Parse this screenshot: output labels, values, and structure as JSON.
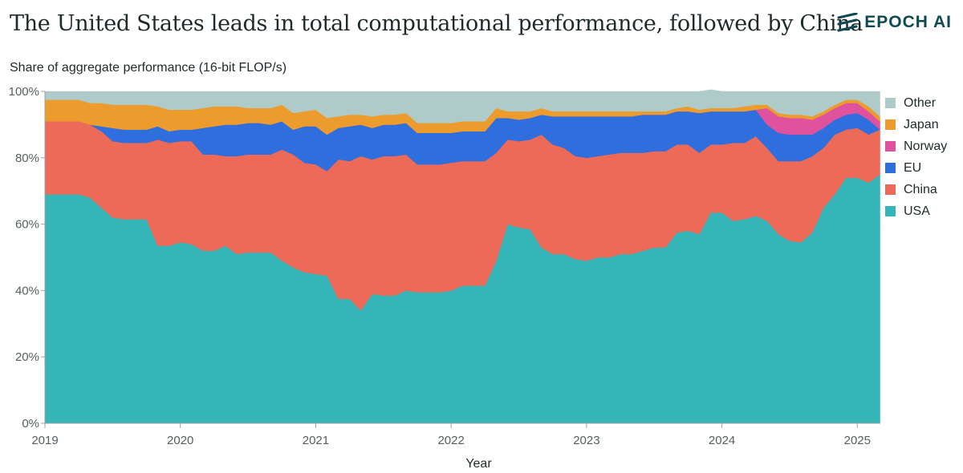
{
  "title": "The United States leads in total computational performance, followed by China",
  "brand": "EPOCH AI",
  "colors": {
    "USA": "#35b5b8",
    "China": "#ec6a57",
    "EU": "#2f6fdd",
    "Norway": "#e0519e",
    "Japan": "#ec9c2c",
    "Other": "#aecbca",
    "logo": "#0f4a52"
  },
  "chart_data": {
    "type": "area",
    "stacked": true,
    "title": "The United States leads in total computational performance, followed by China",
    "ylabel": "Share of aggregate performance (16-bit FLOP/s)",
    "xlabel": "Year",
    "xlim": [
      2019,
      2025.17
    ],
    "ylim": [
      0,
      100
    ],
    "yticks": [
      0,
      20,
      40,
      60,
      80,
      100
    ],
    "ytick_labels": [
      "0%",
      "20%",
      "40%",
      "60%",
      "80%",
      "100%"
    ],
    "xticks": [
      2019,
      2020,
      2021,
      2022,
      2023,
      2024,
      2025
    ],
    "xtick_labels": [
      "2019",
      "2020",
      "2021",
      "2022",
      "2023",
      "2024",
      "2025"
    ],
    "legend": [
      "Other",
      "Japan",
      "Norway",
      "EU",
      "China",
      "USA"
    ],
    "x": [
      2019.0,
      2019.083,
      2019.167,
      2019.25,
      2019.333,
      2019.417,
      2019.5,
      2019.583,
      2019.667,
      2019.75,
      2019.833,
      2019.917,
      2020.0,
      2020.083,
      2020.167,
      2020.25,
      2020.333,
      2020.417,
      2020.5,
      2020.583,
      2020.667,
      2020.75,
      2020.833,
      2020.917,
      2021.0,
      2021.083,
      2021.167,
      2021.25,
      2021.333,
      2021.417,
      2021.5,
      2021.583,
      2021.667,
      2021.75,
      2021.833,
      2021.917,
      2022.0,
      2022.083,
      2022.167,
      2022.25,
      2022.333,
      2022.417,
      2022.5,
      2022.583,
      2022.667,
      2022.75,
      2022.833,
      2022.917,
      2023.0,
      2023.083,
      2023.167,
      2023.25,
      2023.333,
      2023.417,
      2023.5,
      2023.583,
      2023.667,
      2023.75,
      2023.833,
      2023.917,
      2024.0,
      2024.083,
      2024.167,
      2024.25,
      2024.333,
      2024.417,
      2024.5,
      2024.583,
      2024.667,
      2024.75,
      2024.833,
      2024.917,
      2025.0,
      2025.083,
      2025.167
    ],
    "series": [
      {
        "name": "USA",
        "values": [
          69,
          69,
          69,
          69,
          68,
          65,
          62,
          61.5,
          61.5,
          61.5,
          53.5,
          53.5,
          54.5,
          54,
          52,
          52,
          53.5,
          51,
          51.5,
          51.5,
          51.5,
          49,
          47,
          45.5,
          45,
          44.5,
          37.5,
          37.5,
          34,
          39,
          38.5,
          38.5,
          40,
          39.5,
          39.5,
          39.5,
          40,
          41.5,
          41.5,
          41.5,
          49,
          60,
          59,
          58.5,
          53,
          51,
          51,
          49.5,
          49,
          50,
          50,
          51,
          51,
          52,
          53,
          53,
          57.5,
          58,
          57,
          63.5,
          63.5,
          61,
          61.5,
          62.5,
          61,
          57,
          55,
          54.5,
          57.5,
          65,
          69,
          74,
          74,
          72.5,
          75
        ]
      },
      {
        "name": "China",
        "values": [
          22,
          22,
          22,
          22,
          22,
          23,
          23,
          23,
          23,
          23,
          32,
          31,
          30.5,
          31,
          29,
          29,
          27,
          29.5,
          29.5,
          29.5,
          29.5,
          33.5,
          34,
          33,
          33,
          31.5,
          42,
          41.5,
          46.5,
          40.5,
          42,
          42,
          41,
          38.5,
          38.5,
          38.5,
          38.5,
          37.5,
          37.5,
          37.5,
          32.5,
          25.5,
          26,
          27,
          34,
          33,
          32,
          31,
          31,
          30.5,
          31,
          30.5,
          30.5,
          29.5,
          29,
          29,
          26.5,
          26,
          24.5,
          20.5,
          20.5,
          23.5,
          23,
          24,
          22,
          22,
          24,
          24.5,
          23,
          18,
          18,
          14.5,
          15,
          14.5,
          13.5
        ]
      },
      {
        "name": "EU",
        "values": [
          0,
          0,
          0,
          0,
          0,
          1.5,
          4,
          4,
          4,
          4,
          4,
          3.5,
          3.5,
          3.5,
          8,
          8.5,
          9.5,
          9.5,
          9.5,
          9.5,
          9,
          8.5,
          7.5,
          11,
          11.5,
          11,
          9.5,
          10.5,
          9.5,
          9.5,
          9.5,
          9.5,
          9.5,
          9.5,
          9.5,
          9.5,
          9,
          9,
          9,
          9,
          10.5,
          6.5,
          6.5,
          6.5,
          6,
          8.5,
          9.5,
          12,
          12.5,
          12,
          11.5,
          11,
          11,
          11.5,
          11,
          11,
          10,
          10,
          12,
          10,
          10,
          9.5,
          9.5,
          8,
          7,
          8.5,
          8,
          8,
          6.5,
          6,
          4.5,
          4.5,
          4.5,
          4.5,
          0
        ]
      },
      {
        "name": "Norway",
        "values": [
          0,
          0,
          0,
          0,
          0,
          0,
          0,
          0,
          0,
          0,
          0,
          0,
          0,
          0,
          0,
          0,
          0,
          0,
          0,
          0,
          0,
          0,
          0,
          0,
          0,
          0,
          0,
          0,
          0,
          0,
          0,
          0,
          0,
          0,
          0,
          0,
          0,
          0,
          0,
          0,
          0,
          0,
          0,
          0,
          0,
          0,
          0,
          0,
          0,
          0,
          0,
          0,
          0,
          0,
          0,
          0,
          0,
          0,
          0,
          0,
          0,
          0,
          0,
          0,
          5,
          5,
          5,
          5,
          4.5,
          4,
          3.5,
          3.5,
          3,
          2.5,
          2.5
        ]
      },
      {
        "name": "Japan",
        "values": [
          6.5,
          6.5,
          6.5,
          6.5,
          6.5,
          7,
          7,
          7.5,
          7.5,
          7.5,
          6,
          6.5,
          6,
          6,
          6,
          6,
          5.5,
          5.5,
          4.5,
          4.5,
          5,
          5,
          5,
          4.5,
          5,
          5,
          3.5,
          3.5,
          3,
          3.5,
          3,
          3,
          3,
          3,
          3,
          3,
          3,
          3,
          3,
          3,
          3,
          2,
          2.5,
          2,
          2,
          1.5,
          1.5,
          1.5,
          1.5,
          1.5,
          1.5,
          1.5,
          1.5,
          1,
          1,
          1,
          1,
          1.5,
          1,
          1,
          1,
          1,
          1.5,
          1.5,
          1,
          1,
          1,
          1,
          1,
          1,
          1,
          1,
          1,
          1.5,
          1.5
        ]
      },
      {
        "name": "Other",
        "values": [
          2.5,
          2.5,
          2.5,
          2.5,
          3.5,
          3.5,
          4,
          4,
          4,
          4,
          4.5,
          5.5,
          5.5,
          5.5,
          5,
          4.5,
          4.5,
          4.5,
          5,
          5,
          5,
          4,
          6.5,
          6,
          5.5,
          8,
          7.5,
          7,
          7,
          7.5,
          7,
          7,
          6.5,
          9.5,
          9.5,
          9.5,
          9.5,
          9,
          9,
          9,
          5,
          6,
          6,
          6,
          5,
          6,
          6,
          6,
          6,
          6,
          6,
          6,
          6,
          6,
          6,
          6,
          5,
          4.5,
          5.5,
          5.5,
          5,
          5,
          4.5,
          4,
          4,
          6.5,
          7,
          7,
          7.5,
          6,
          4,
          2.5,
          2.5,
          4.5,
          7.5
        ]
      }
    ]
  }
}
